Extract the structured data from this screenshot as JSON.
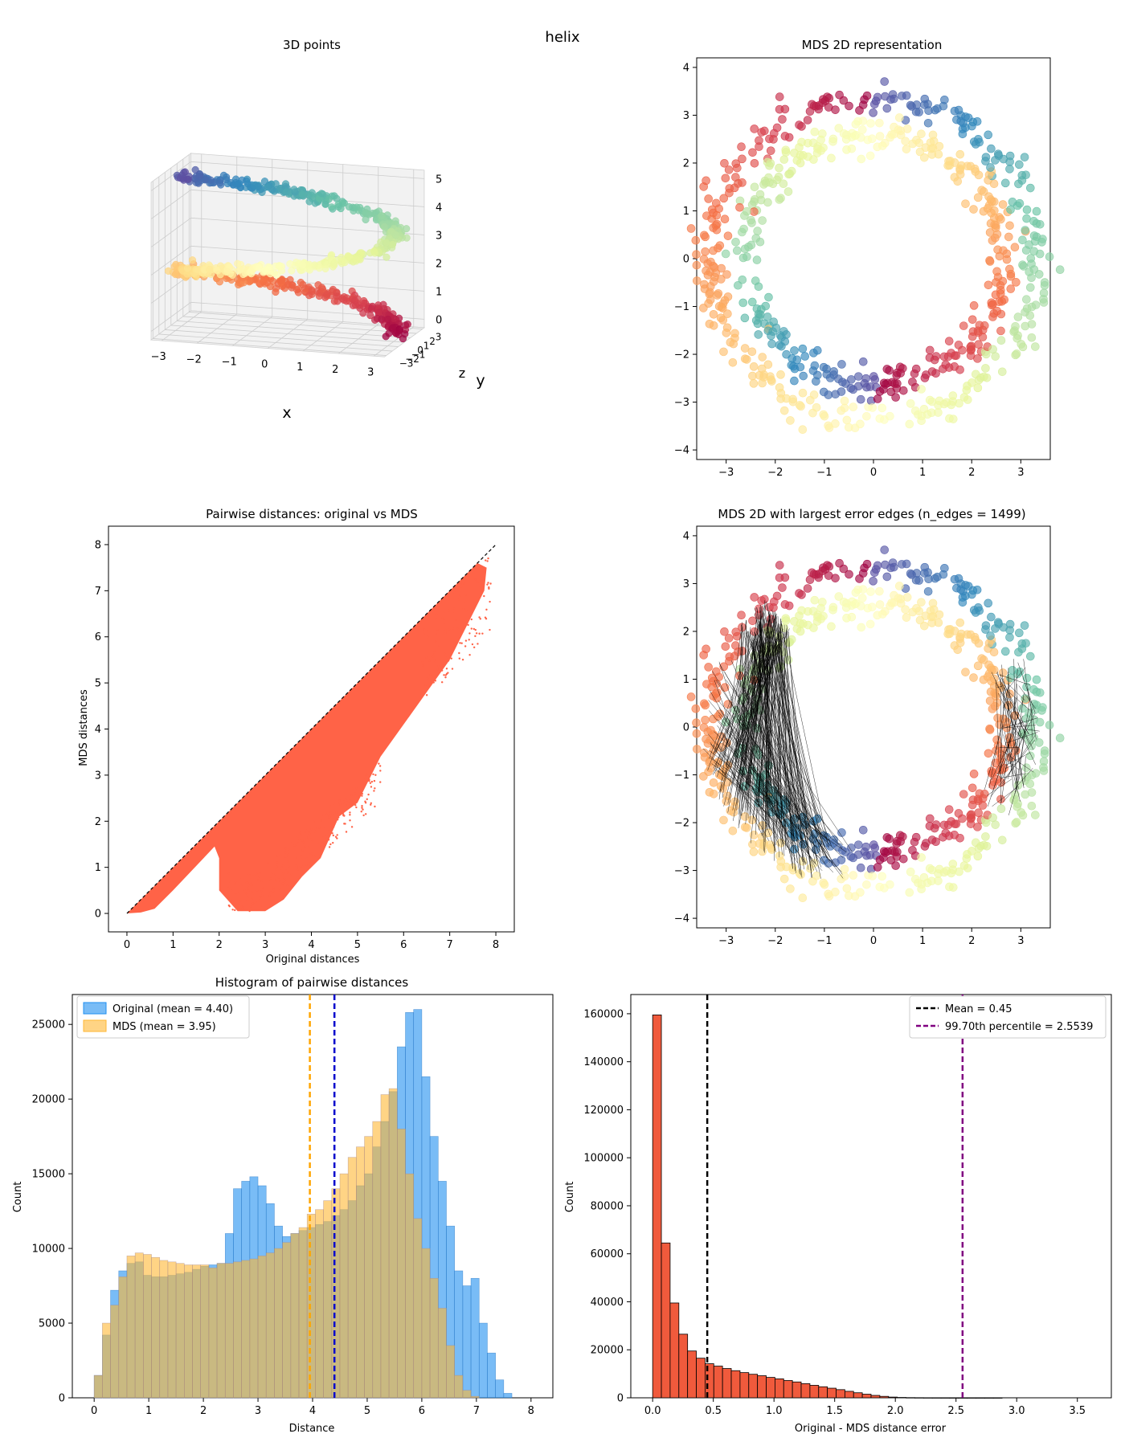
{
  "figure_title": "helix",
  "colors": {
    "spectral": [
      "#9e0142",
      "#d53e4f",
      "#f46d43",
      "#fdae61",
      "#fee08b",
      "#ffffbf",
      "#e6f598",
      "#abdda4",
      "#66c2a5",
      "#3288bd",
      "#5e4fa2"
    ],
    "scatter_fill": "#ff6347",
    "hist_original": "#1f8ff0",
    "hist_mds": "#ffb733",
    "error_bars": "#f05a3c",
    "mean_error_line": "#000000",
    "percentile_line": "#800080",
    "original_mean_line": "#0000cc",
    "mds_mean_line": "#ffa500"
  },
  "panels": {
    "p3d": {
      "title": "3D points",
      "xlabel": "x",
      "ylabel": "y",
      "zlabel": "z",
      "x_ticks": [
        "−3",
        "−2",
        "−1",
        "0",
        "1",
        "2",
        "3"
      ],
      "y_ticks": [
        "−3",
        "−2",
        "−1",
        "0",
        "1",
        "2",
        "3"
      ],
      "z_ticks": [
        "0",
        "1",
        "2",
        "3",
        "4",
        "5"
      ]
    },
    "mds": {
      "title": "MDS 2D representation",
      "x_ticks": [
        "−3",
        "−2",
        "−1",
        "0",
        "1",
        "2",
        "3"
      ],
      "y_ticks": [
        "−4",
        "−3",
        "−2",
        "−1",
        "0",
        "1",
        "2",
        "3",
        "4"
      ]
    },
    "pairwise": {
      "title": "Pairwise distances: original vs MDS",
      "xlabel": "Original distances",
      "ylabel": "MDS distances",
      "x_ticks": [
        "0",
        "1",
        "2",
        "3",
        "4",
        "5",
        "6",
        "7",
        "8"
      ],
      "y_ticks": [
        "0",
        "1",
        "2",
        "3",
        "4",
        "5",
        "6",
        "7",
        "8"
      ]
    },
    "edges": {
      "title": "MDS 2D with largest error edges (n_edges = 1499)",
      "x_ticks": [
        "−3",
        "−2",
        "−1",
        "0",
        "1",
        "2",
        "3"
      ],
      "y_ticks": [
        "−4",
        "−3",
        "−2",
        "−1",
        "0",
        "1",
        "2",
        "3",
        "4"
      ]
    },
    "hist": {
      "title": "Histogram of pairwise distances",
      "xlabel": "Distance",
      "ylabel": "Count",
      "legend_original": "Original (mean = 4.40)",
      "legend_mds": "MDS (mean = 3.95)",
      "x_ticks": [
        "0",
        "1",
        "2",
        "3",
        "4",
        "5",
        "6",
        "7",
        "8"
      ],
      "y_ticks": [
        "0",
        "5000",
        "10000",
        "15000",
        "20000",
        "25000"
      ]
    },
    "err": {
      "title": "",
      "xlabel": "Original - MDS distance error",
      "ylabel": "Count",
      "legend_mean": "Mean = 0.45",
      "legend_pct": "99.70th percentile = 2.5539",
      "x_ticks": [
        "0.0",
        "0.5",
        "1.0",
        "1.5",
        "2.0",
        "2.5",
        "3.0",
        "3.5"
      ],
      "y_ticks": [
        "0",
        "20000",
        "40000",
        "60000",
        "80000",
        "100000",
        "120000",
        "140000",
        "160000"
      ]
    }
  },
  "chart_data": [
    {
      "type": "scatter",
      "title": "3D points",
      "xlabel": "x",
      "ylabel": "y",
      "zlabel": "z",
      "xlim": [
        -3.3,
        3.3
      ],
      "ylim": [
        -3.3,
        3.3
      ],
      "zlim": [
        -0.3,
        5.3
      ],
      "description_series": [
        {
          "name": "helix",
          "t_range": [
            0,
            1
          ],
          "x": "3*cos(2*pi*t*1.5)",
          "y": "3*sin(2*pi*t*1.5)",
          "z": "5*t",
          "colormap": "Spectral"
        }
      ]
    },
    {
      "type": "scatter",
      "title": "MDS 2D representation",
      "xlim": [
        -3.6,
        3.6
      ],
      "ylim": [
        -4.2,
        4.2
      ],
      "ring": {
        "center": [
          0,
          0
        ],
        "radius_min": 2.4,
        "radius_max": 3.8
      }
    },
    {
      "type": "scatter",
      "title": "Pairwise distances: original vs MDS",
      "xlabel": "Original distances",
      "ylabel": "MDS distances",
      "xlim": [
        -0.4,
        8.4
      ],
      "ylim": [
        -0.4,
        8.4
      ],
      "reference_line": {
        "from": [
          0,
          0
        ],
        "to": [
          8,
          8
        ]
      }
    },
    {
      "type": "scatter",
      "title": "MDS 2D with largest error edges (n_edges = 1499)",
      "xlim": [
        -3.6,
        3.6
      ],
      "ylim": [
        -4.2,
        4.2
      ],
      "n_edges": 1499
    },
    {
      "type": "bar",
      "title": "Histogram of pairwise distances",
      "xlabel": "Distance",
      "ylabel": "Count",
      "xlim": [
        -0.4,
        8.4
      ],
      "ylim": [
        0,
        27000
      ],
      "bin_width": 0.15,
      "series": [
        {
          "name": "Original (mean = 4.40)",
          "mean": 4.4,
          "values": [
            1500,
            4200,
            7200,
            8500,
            9000,
            9100,
            8200,
            8100,
            8100,
            8200,
            8300,
            8400,
            8600,
            8800,
            8900,
            9000,
            11000,
            14000,
            14500,
            14800,
            14200,
            13000,
            11500,
            10800,
            11000,
            11200,
            11400,
            11600,
            11800,
            12200,
            12600,
            13200,
            14200,
            15000,
            16800,
            18500,
            20500,
            23500,
            25800,
            26000,
            21500,
            17500,
            14500,
            11500,
            8500,
            7500,
            8000,
            5000,
            3000,
            1200,
            300
          ]
        },
        {
          "name": "MDS (mean = 3.95)",
          "mean": 3.95,
          "values": [
            1500,
            5000,
            6200,
            8100,
            9500,
            9700,
            9600,
            9400,
            9200,
            9100,
            9000,
            8900,
            8900,
            8900,
            8700,
            9000,
            9000,
            9100,
            9200,
            9300,
            9500,
            9700,
            10000,
            10400,
            11000,
            11400,
            12300,
            12600,
            13200,
            14000,
            15000,
            16100,
            16800,
            17500,
            18500,
            20300,
            20700,
            18000,
            15000,
            12000,
            10000,
            8000,
            6000,
            3500,
            1500,
            500,
            100,
            0,
            0,
            0,
            0
          ]
        }
      ]
    },
    {
      "type": "bar",
      "title": "",
      "xlabel": "Original - MDS distance error",
      "ylabel": "Count",
      "xlim": [
        -0.18,
        3.78
      ],
      "ylim": [
        0,
        168000
      ],
      "bin_width": 0.072,
      "values": [
        159500,
        64500,
        39500,
        26500,
        19500,
        16500,
        14200,
        13200,
        12200,
        11300,
        10500,
        9800,
        9200,
        8500,
        7900,
        7200,
        6600,
        5900,
        5200,
        4600,
        4000,
        3400,
        2700,
        2100,
        1500,
        1000,
        600,
        300,
        150,
        80,
        50,
        30,
        20,
        10,
        5,
        2,
        2,
        1,
        1,
        1
      ],
      "mean": 0.45,
      "percentile_99_70": 2.5539
    }
  ]
}
